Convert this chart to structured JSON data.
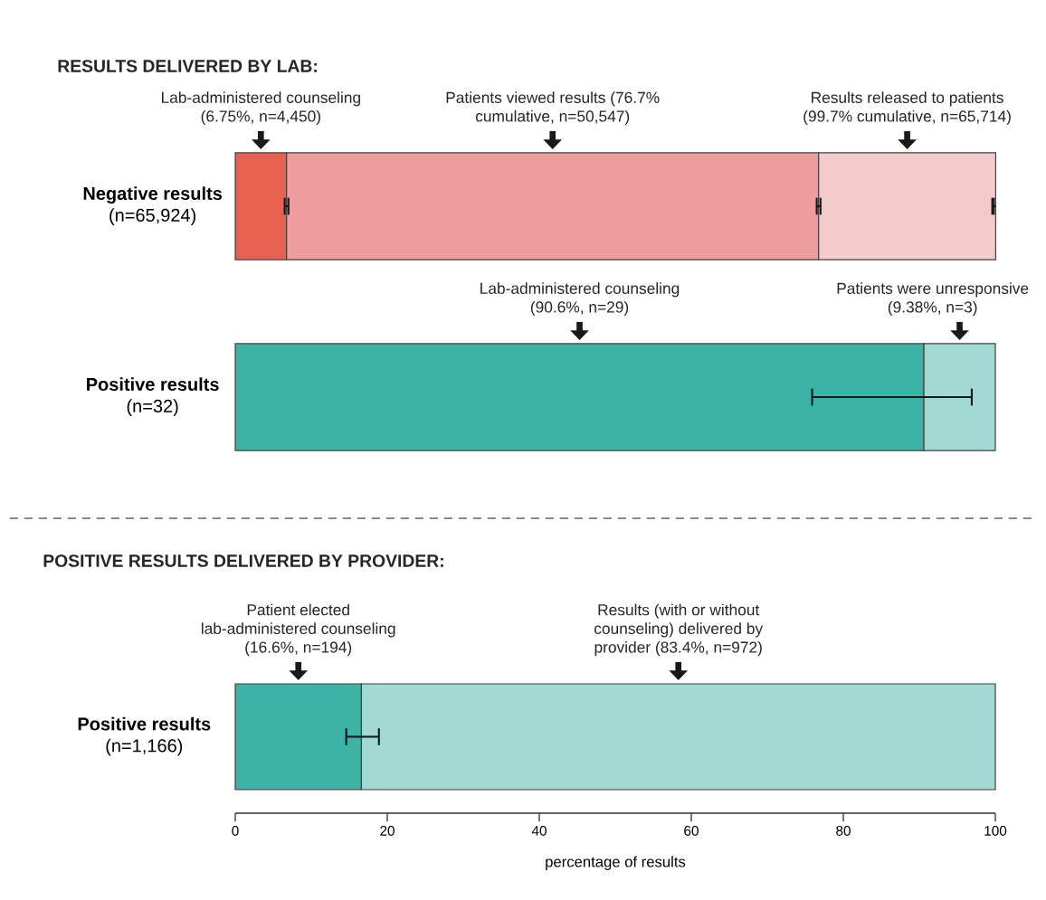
{
  "chart_data": [
    {
      "type": "bar",
      "orientation": "horizontal",
      "stacked": true,
      "title": "RESULTS DELIVERED BY LAB:",
      "categories": [
        "**Negative results** (n=65,924)",
        "**Positive results** (n=32)"
      ],
      "series": [
        {
          "colors": [
            "#e8604f",
            "#3cb3a5"
          ],
          "values": [
            6.75,
            90.6
          ],
          "errors": [
            [
              6.5,
              7.0
            ],
            [
              75.9,
              96.9
            ]
          ]
        },
        {
          "colors": [
            "#ee9c9c",
            "#a3d9d3"
          ],
          "values": [
            70.0,
            9.4
          ],
          "errors": [
            [
              76.5,
              77.0
            ],
            null
          ]
        },
        {
          "colors": [
            "#f4cbcb",
            "#f4cbcb"
          ],
          "values": [
            23.3,
            null
          ],
          "errors": [
            [
              99.6,
              99.8
            ],
            null
          ]
        }
      ],
      "xlim": [
        0,
        100
      ],
      "tick_labels": "y",
      "annotations": [
        "Lab-administered counseling (6.75%, n=4,450)",
        "Patients viewed results (76.7% cumulative, n=50,547)",
        "Results released to patients (99.7% cumulative, n=65,714)",
        "Lab-administered counseling (90.6%, n=29)",
        "Patients were unresponsive (9.38%, n=3)"
      ]
    },
    {
      "type": "bar",
      "orientation": "horizontal",
      "stacked": true,
      "title": "POSITIVE RESULTS DELIVERED BY PROVIDER:",
      "categories": [
        "**Positive results** (n=1,166)"
      ],
      "series": [
        {
          "colors": [
            "#3cb3a5"
          ],
          "values": [
            16.6
          ],
          "errors": [
            [
              14.6,
              18.9
            ]
          ]
        },
        {
          "colors": [
            "#a3d9d3"
          ],
          "values": [
            83.4
          ]
        }
      ],
      "xlim": [
        0,
        100
      ],
      "xticks": [
        0,
        20,
        40,
        60,
        80,
        100
      ],
      "xlabel": "percentage of results",
      "annotations": [
        "Patient elected lab-administered counseling (16.6%, n=194)",
        "Results (with or without counseling) delivered by provider (83.4%, n=972)"
      ]
    }
  ]
}
